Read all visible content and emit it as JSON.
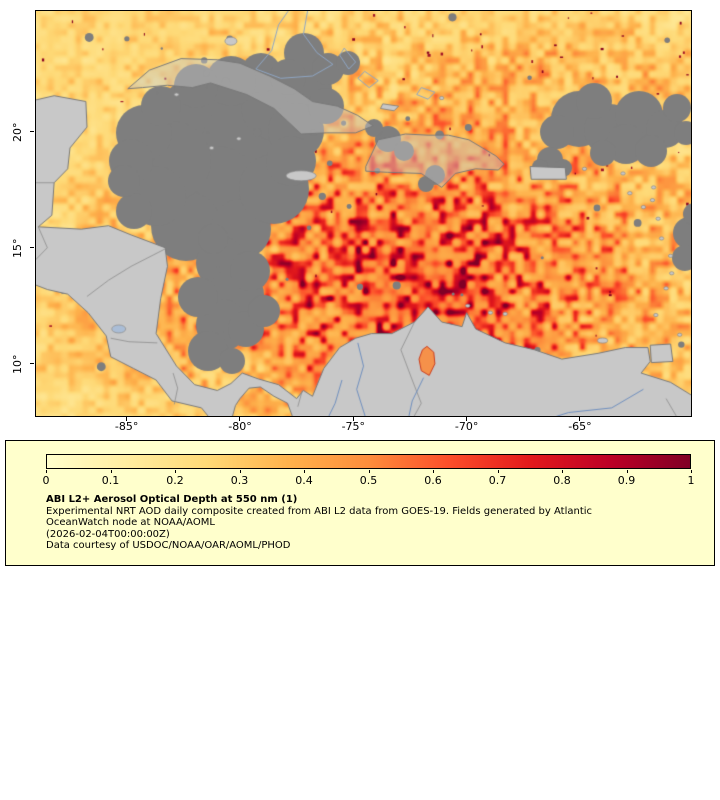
{
  "colors": {
    "page_bg": "#ffffff",
    "legend_bg": "#ffffcc",
    "frame": "#000000",
    "land": "#c8c8c8",
    "land_border": "#7a7a7a",
    "country_border": "#8b8b8b",
    "cloud": "#7e7e7e",
    "river": "#6f8fbf",
    "bank_outline": "#8fa6c4",
    "lake_data_fill": "#f5914a",
    "lake_data_edge": "#cc3d1e",
    "speck_dark_red": "#8a0020",
    "text": "#000000"
  },
  "map": {
    "lat_ticks": [
      {
        "label": "20°",
        "value": 20
      },
      {
        "label": "15°",
        "value": 15
      },
      {
        "label": "10°",
        "value": 10
      }
    ],
    "lon_ticks": [
      {
        "label": "-85°",
        "value": -85
      },
      {
        "label": "-80°",
        "value": -80
      },
      {
        "label": "-75°",
        "value": -75
      },
      {
        "label": "-70°",
        "value": -70
      },
      {
        "label": "-65°",
        "value": -65
      }
    ]
  },
  "legend": {
    "colorbar": {
      "min": 0,
      "max": 1,
      "tick_labels": [
        "0",
        "0.1",
        "0.2",
        "0.3",
        "0.4",
        "0.5",
        "0.6",
        "0.7",
        "0.8",
        "0.9",
        "1"
      ],
      "colors": [
        "#ffffcc",
        "#ffeda0",
        "#fed976",
        "#feb24c",
        "#fd8d3c",
        "#fc4e2a",
        "#e31a1c",
        "#bd0026",
        "#800026"
      ]
    },
    "title": "ABI L2+ Aerosol Optical Depth at 550 nm (1)",
    "description_lines": [
      "Experimental NRT AOD daily composite created from ABI L2 data from GOES-19. Fields generated by Atlantic",
      "OceanWatch node at NOAA/AOML"
    ],
    "timestamp": "(2026-02-04T00:00:00Z)",
    "credit": "Data courtesy of USDOC/NOAA/OAR/AOML/PHOD"
  }
}
